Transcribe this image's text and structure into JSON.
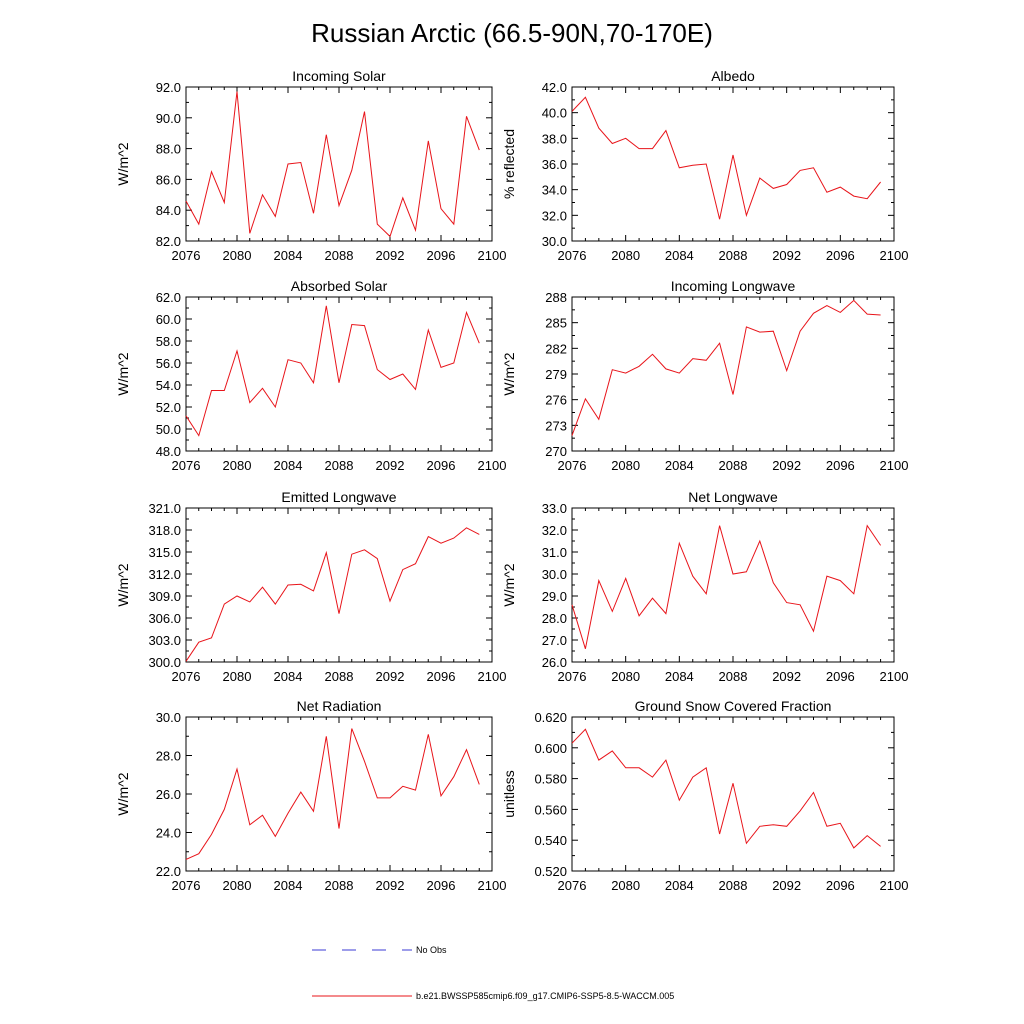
{
  "title": "Russian Arctic (66.5-90N,70-170E)",
  "colors": {
    "series": "#e8141a",
    "obs": "#3b3bd6",
    "axis": "#000000"
  },
  "legend": {
    "obs_label": "No Obs",
    "model_label": "b.e21.BWSSP585cmip6.f09_g17.CMIP6-SSP5-8.5-WACCM.005"
  },
  "chart_data": [
    {
      "id": "incoming-solar",
      "type": "line",
      "title": "Incoming Solar",
      "ylabel": "W/m^2",
      "xlim": [
        2076,
        2100
      ],
      "ylim": [
        82,
        92
      ],
      "xticks": [
        2076,
        2080,
        2084,
        2088,
        2092,
        2096,
        2100
      ],
      "xtick_labels": [
        "2076",
        "2080",
        "2084",
        "2088",
        "2092",
        "2096",
        "2100"
      ],
      "yticks": [
        82,
        84,
        86,
        88,
        90,
        92
      ],
      "ytick_labels": [
        "82.0",
        "84.0",
        "86.0",
        "88.0",
        "90.0",
        "92.0"
      ],
      "series": [
        {
          "name": "b.e21.BWSSP585cmip6.f09_g17.CMIP6-SSP5-8.5-WACCM.005",
          "x_start": 2076,
          "values": [
            84.6,
            83.1,
            86.5,
            84.5,
            91.7,
            82.5,
            85.0,
            83.6,
            87.0,
            87.1,
            83.8,
            88.9,
            84.3,
            86.6,
            90.4,
            83.1,
            82.3,
            84.8,
            82.7,
            88.5,
            84.1,
            83.1,
            90.1,
            87.9
          ]
        }
      ]
    },
    {
      "id": "albedo",
      "type": "line",
      "title": "Albedo",
      "ylabel": "% reflected",
      "xlim": [
        2076,
        2100
      ],
      "ylim": [
        30,
        42
      ],
      "xticks": [
        2076,
        2080,
        2084,
        2088,
        2092,
        2096,
        2100
      ],
      "xtick_labels": [
        "2076",
        "2080",
        "2084",
        "2088",
        "2092",
        "2096",
        "2100"
      ],
      "yticks": [
        30,
        32,
        34,
        36,
        38,
        40,
        42
      ],
      "ytick_labels": [
        "30.0",
        "32.0",
        "34.0",
        "36.0",
        "38.0",
        "40.0",
        "42.0"
      ],
      "series": [
        {
          "name": "b.e21.BWSSP585cmip6.f09_g17.CMIP6-SSP5-8.5-WACCM.005",
          "x_start": 2076,
          "values": [
            40.1,
            41.2,
            38.8,
            37.6,
            38.0,
            37.2,
            37.2,
            38.6,
            35.7,
            35.9,
            36.0,
            31.7,
            36.7,
            32.0,
            34.9,
            34.1,
            34.4,
            35.5,
            35.7,
            33.8,
            34.2,
            33.5,
            33.3,
            34.6
          ]
        }
      ]
    },
    {
      "id": "absorbed-solar",
      "type": "line",
      "title": "Absorbed Solar",
      "ylabel": "W/m^2",
      "xlim": [
        2076,
        2100
      ],
      "ylim": [
        48,
        62
      ],
      "xticks": [
        2076,
        2080,
        2084,
        2088,
        2092,
        2096,
        2100
      ],
      "xtick_labels": [
        "2076",
        "2080",
        "2084",
        "2088",
        "2092",
        "2096",
        "2100"
      ],
      "yticks": [
        48,
        50,
        52,
        54,
        56,
        58,
        60,
        62
      ],
      "ytick_labels": [
        "48.0",
        "50.0",
        "52.0",
        "54.0",
        "56.0",
        "58.0",
        "60.0",
        "62.0"
      ],
      "series": [
        {
          "name": "b.e21.BWSSP585cmip6.f09_g17.CMIP6-SSP5-8.5-WACCM.005",
          "x_start": 2076,
          "values": [
            51.2,
            49.4,
            53.5,
            53.5,
            57.1,
            52.4,
            53.7,
            52.0,
            56.3,
            56.0,
            54.2,
            61.2,
            54.2,
            59.5,
            59.4,
            55.4,
            54.5,
            55.0,
            53.6,
            59.0,
            55.6,
            56.0,
            60.6,
            57.8
          ]
        }
      ]
    },
    {
      "id": "incoming-longwave",
      "type": "line",
      "title": "Incoming Longwave",
      "ylabel": "W/m^2",
      "xlim": [
        2076,
        2100
      ],
      "ylim": [
        270,
        288
      ],
      "xticks": [
        2076,
        2080,
        2084,
        2088,
        2092,
        2096,
        2100
      ],
      "xtick_labels": [
        "2076",
        "2080",
        "2084",
        "2088",
        "2092",
        "2096",
        "2100"
      ],
      "yticks": [
        270,
        273,
        276,
        279,
        282,
        285,
        288
      ],
      "ytick_labels": [
        "270",
        "273",
        "276",
        "279",
        "282",
        "285",
        "288"
      ],
      "series": [
        {
          "name": "b.e21.BWSSP585cmip6.f09_g17.CMIP6-SSP5-8.5-WACCM.005",
          "x_start": 2076,
          "values": [
            271.8,
            276.1,
            273.7,
            279.5,
            279.1,
            279.9,
            281.3,
            279.6,
            279.1,
            280.8,
            280.6,
            282.6,
            276.6,
            284.5,
            283.9,
            284.0,
            279.4,
            284.0,
            286.1,
            287.0,
            286.2,
            287.6,
            286.0,
            285.9
          ]
        }
      ]
    },
    {
      "id": "emitted-longwave",
      "type": "line",
      "title": "Emitted Longwave",
      "ylabel": "W/m^2",
      "xlim": [
        2076,
        2100
      ],
      "ylim": [
        300,
        321
      ],
      "xticks": [
        2076,
        2080,
        2084,
        2088,
        2092,
        2096,
        2100
      ],
      "xtick_labels": [
        "2076",
        "2080",
        "2084",
        "2088",
        "2092",
        "2096",
        "2100"
      ],
      "yticks": [
        300,
        303,
        306,
        309,
        312,
        315,
        318,
        321
      ],
      "ytick_labels": [
        "300.0",
        "303.0",
        "306.0",
        "309.0",
        "312.0",
        "315.0",
        "318.0",
        "321.0"
      ],
      "series": [
        {
          "name": "b.e21.BWSSP585cmip6.f09_g17.CMIP6-SSP5-8.5-WACCM.005",
          "x_start": 2076,
          "values": [
            300.1,
            302.7,
            303.3,
            307.9,
            309.0,
            308.2,
            310.2,
            307.9,
            310.5,
            310.6,
            309.7,
            314.9,
            306.6,
            314.7,
            315.3,
            314.1,
            308.3,
            312.6,
            313.4,
            317.1,
            316.2,
            316.9,
            318.3,
            317.4
          ]
        }
      ]
    },
    {
      "id": "net-longwave",
      "type": "line",
      "title": "Net Longwave",
      "ylabel": "W/m^2",
      "xlim": [
        2076,
        2100
      ],
      "ylim": [
        26,
        33
      ],
      "xticks": [
        2076,
        2080,
        2084,
        2088,
        2092,
        2096,
        2100
      ],
      "xtick_labels": [
        "2076",
        "2080",
        "2084",
        "2088",
        "2092",
        "2096",
        "2100"
      ],
      "yticks": [
        26,
        27,
        28,
        29,
        30,
        31,
        32,
        33
      ],
      "ytick_labels": [
        "26.0",
        "27.0",
        "28.0",
        "29.0",
        "30.0",
        "31.0",
        "32.0",
        "33.0"
      ],
      "series": [
        {
          "name": "b.e21.BWSSP585cmip6.f09_g17.CMIP6-SSP5-8.5-WACCM.005",
          "x_start": 2076,
          "values": [
            28.6,
            26.6,
            29.7,
            28.3,
            29.8,
            28.1,
            28.9,
            28.2,
            31.4,
            29.9,
            29.1,
            32.2,
            30.0,
            30.1,
            31.5,
            29.6,
            28.7,
            28.6,
            27.4,
            29.9,
            29.7,
            29.1,
            32.2,
            31.3
          ]
        }
      ]
    },
    {
      "id": "net-radiation",
      "type": "line",
      "title": "Net Radiation",
      "ylabel": "W/m^2",
      "xlim": [
        2076,
        2100
      ],
      "ylim": [
        22,
        30
      ],
      "xticks": [
        2076,
        2080,
        2084,
        2088,
        2092,
        2096,
        2100
      ],
      "xtick_labels": [
        "2076",
        "2080",
        "2084",
        "2088",
        "2092",
        "2096",
        "2100"
      ],
      "yticks": [
        22,
        24,
        26,
        28,
        30
      ],
      "ytick_labels": [
        "22.0",
        "24.0",
        "26.0",
        "28.0",
        "30.0"
      ],
      "series": [
        {
          "name": "b.e21.BWSSP585cmip6.f09_g17.CMIP6-SSP5-8.5-WACCM.005",
          "x_start": 2076,
          "values": [
            22.6,
            22.9,
            23.9,
            25.2,
            27.3,
            24.4,
            24.9,
            23.8,
            25.0,
            26.1,
            25.1,
            29.0,
            24.2,
            29.4,
            27.7,
            25.8,
            25.8,
            26.4,
            26.2,
            29.1,
            25.9,
            26.9,
            28.3,
            26.5
          ]
        }
      ]
    },
    {
      "id": "ground-snow-covered-fraction",
      "type": "line",
      "title": "Ground Snow Covered Fraction",
      "ylabel": "unitless",
      "xlim": [
        2076,
        2100
      ],
      "ylim": [
        0.52,
        0.62
      ],
      "xticks": [
        2076,
        2080,
        2084,
        2088,
        2092,
        2096,
        2100
      ],
      "xtick_labels": [
        "2076",
        "2080",
        "2084",
        "2088",
        "2092",
        "2096",
        "2100"
      ],
      "yticks": [
        0.52,
        0.54,
        0.56,
        0.58,
        0.6,
        0.62
      ],
      "ytick_labels": [
        "0.520",
        "0.540",
        "0.560",
        "0.580",
        "0.600",
        "0.620"
      ],
      "series": [
        {
          "name": "b.e21.BWSSP585cmip6.f09_g17.CMIP6-SSP5-8.5-WACCM.005",
          "x_start": 2076,
          "values": [
            0.603,
            0.612,
            0.592,
            0.598,
            0.587,
            0.587,
            0.581,
            0.592,
            0.566,
            0.581,
            0.587,
            0.544,
            0.577,
            0.538,
            0.549,
            0.55,
            0.549,
            0.559,
            0.571,
            0.549,
            0.551,
            0.535,
            0.543,
            0.536
          ]
        }
      ]
    }
  ]
}
